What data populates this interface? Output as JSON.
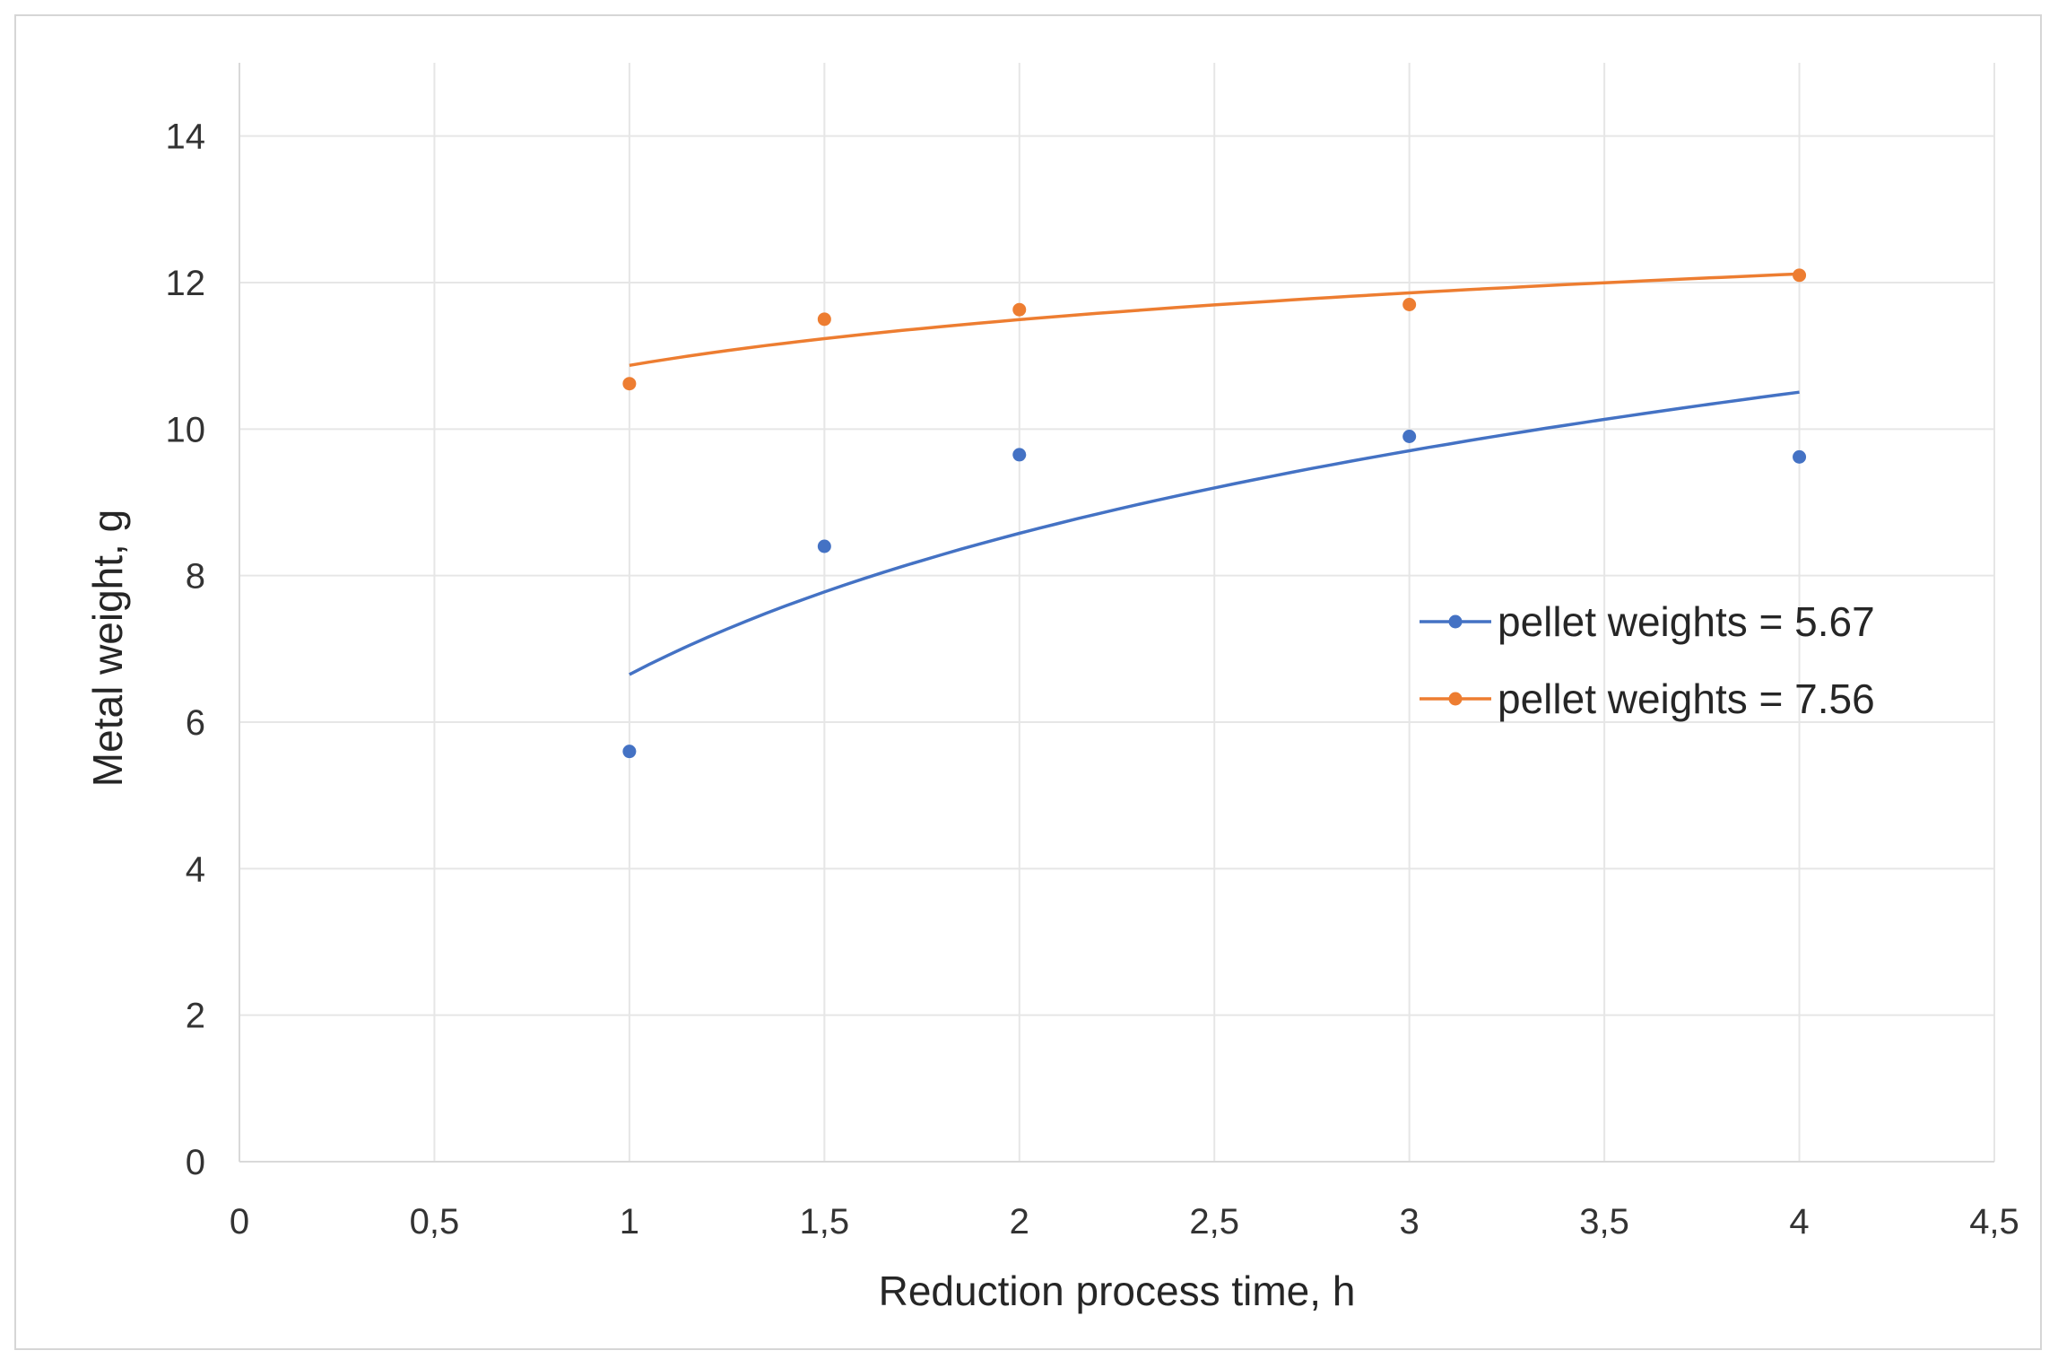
{
  "chart_data": {
    "type": "scatter",
    "title": "",
    "xlabel": "Reduction process time, h",
    "ylabel": "Metal weight, g",
    "xlim": [
      0,
      4.5
    ],
    "ylim": [
      0,
      15
    ],
    "x_ticks": [
      0,
      0.5,
      1,
      1.5,
      2,
      2.5,
      3,
      3.5,
      4,
      4.5
    ],
    "x_tick_labels": [
      "0",
      "0,5",
      "1",
      "1,5",
      "2",
      "2,5",
      "3",
      "3,5",
      "4",
      "4,5"
    ],
    "y_ticks": [
      0,
      2,
      4,
      6,
      8,
      10,
      12,
      14
    ],
    "y_tick_labels": [
      "0",
      "2",
      "4",
      "6",
      "8",
      "10",
      "12",
      "14"
    ],
    "grid": true,
    "legend_position": "right",
    "trendline": "logarithmic",
    "series": [
      {
        "name": "pellet weights = 5.67",
        "color": "#4472c4",
        "x": [
          1,
          1.5,
          2,
          3,
          4
        ],
        "y": [
          5.6,
          8.4,
          9.65,
          9.9,
          9.62
        ],
        "trend": {
          "intercept": 6.65,
          "slope_ln": 2.78
        }
      },
      {
        "name": "pellet weights = 7.56",
        "color": "#ed7d31",
        "x": [
          1,
          1.5,
          2,
          3,
          4
        ],
        "y": [
          10.62,
          11.5,
          11.63,
          11.7,
          12.1
        ],
        "trend": {
          "intercept": 10.87,
          "slope_ln": 0.9
        }
      }
    ]
  }
}
